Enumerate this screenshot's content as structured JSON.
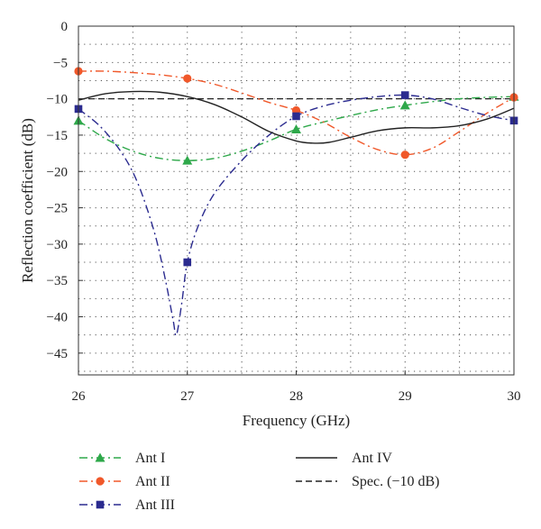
{
  "chart_data": {
    "type": "line",
    "xlabel": "Frequency (GHz)",
    "ylabel": "Reflection coefficient (dB)",
    "xlim": [
      26,
      30
    ],
    "ylim": [
      -48,
      0
    ],
    "xticks": [
      26,
      27,
      28,
      29,
      30
    ],
    "yticks": [
      0,
      -5,
      -10,
      -15,
      -20,
      -25,
      -30,
      -35,
      -40,
      -45
    ],
    "grid": "dotted",
    "legend_position": "bottom",
    "series": [
      {
        "name": "Ant I",
        "color": "#2ea84a",
        "line_style": "dash-dot",
        "marker": "triangle",
        "x": [
          26,
          26.25,
          26.5,
          26.75,
          27,
          27.25,
          27.5,
          27.75,
          28,
          28.25,
          28.5,
          28.75,
          29,
          29.25,
          29.5,
          29.75,
          30
        ],
        "y": [
          -13,
          -15.5,
          -17.2,
          -18.2,
          -18.5,
          -18.2,
          -17.2,
          -15.8,
          -14.2,
          -13.2,
          -12.3,
          -11.5,
          -10.9,
          -10.4,
          -10.0,
          -9.8,
          -9.7
        ],
        "markers_x": [
          26,
          27,
          28,
          29,
          30
        ],
        "markers_y": [
          -13,
          -18.5,
          -14.2,
          -10.9,
          -9.7
        ]
      },
      {
        "name": "Ant II",
        "color": "#f0582a",
        "line_style": "dash-dot",
        "marker": "circle",
        "x": [
          26,
          26.25,
          26.5,
          26.75,
          27,
          27.25,
          27.5,
          27.75,
          28,
          28.25,
          28.5,
          28.75,
          29,
          29.25,
          29.5,
          29.75,
          30
        ],
        "y": [
          -6.2,
          -6.2,
          -6.4,
          -6.7,
          -7.2,
          -8.0,
          -9.2,
          -10.5,
          -11.6,
          -13.2,
          -15.3,
          -17.0,
          -17.7,
          -16.8,
          -14.5,
          -12.0,
          -9.8
        ],
        "markers_x": [
          26,
          27,
          28,
          29,
          30
        ],
        "markers_y": [
          -6.2,
          -7.2,
          -11.6,
          -17.7,
          -9.8
        ]
      },
      {
        "name": "Ant III",
        "color": "#2b2b8f",
        "line_style": "dash-dot",
        "marker": "square",
        "x": [
          26,
          26.2,
          26.4,
          26.55,
          26.7,
          26.8,
          26.87,
          26.9,
          26.95,
          27.0,
          27.1,
          27.25,
          27.5,
          27.75,
          28,
          28.25,
          28.5,
          28.75,
          29,
          29.25,
          29.5,
          29.75,
          30
        ],
        "y": [
          -11.4,
          -13.8,
          -17.5,
          -21.8,
          -28.5,
          -35,
          -40.5,
          -42.5,
          -38,
          -32.5,
          -27.5,
          -23.0,
          -18.5,
          -15.0,
          -12.4,
          -11.0,
          -10.2,
          -9.7,
          -9.5,
          -10.0,
          -11.2,
          -12.3,
          -13.0
        ],
        "markers_x": [
          26,
          27,
          28,
          29,
          30
        ],
        "markers_y": [
          -11.4,
          -32.5,
          -12.4,
          -9.5,
          -13.0
        ]
      },
      {
        "name": "Ant IV",
        "color": "#222222",
        "line_style": "solid",
        "marker": "none",
        "x": [
          26,
          26.25,
          26.5,
          26.75,
          27,
          27.25,
          27.5,
          27.75,
          28,
          28.15,
          28.3,
          28.5,
          28.75,
          29,
          29.25,
          29.5,
          29.75,
          30
        ],
        "y": [
          -10.2,
          -9.3,
          -9.0,
          -9.1,
          -9.7,
          -10.8,
          -12.5,
          -14.5,
          -15.8,
          -16.1,
          -16.0,
          -15.3,
          -14.4,
          -14.0,
          -14.0,
          -13.7,
          -12.8,
          -11.3
        ]
      },
      {
        "name": "Spec. (−10 dB)",
        "color": "#222222",
        "line_style": "dashed",
        "marker": "none",
        "x": [
          26,
          30
        ],
        "y": [
          -10,
          -10
        ]
      }
    ]
  }
}
